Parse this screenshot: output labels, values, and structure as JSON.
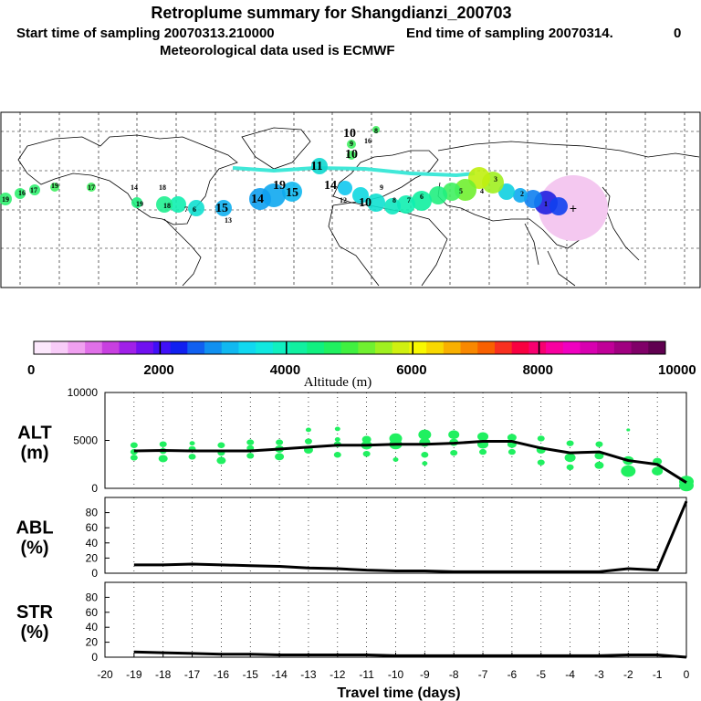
{
  "header": {
    "title": "Retroplume summary for Shangdianzi_200703",
    "line2_start": "Start time of sampling 20070313.210000",
    "line2_end": "End time of sampling 20070314.",
    "line2_tail": "0",
    "line3": "Meteorological data used is ECMWF"
  },
  "colorbar": {
    "label": "Altitude (m)",
    "ticks": [
      "0",
      "2000",
      "4000",
      "6000",
      "8000",
      "10000"
    ],
    "colors": [
      "#fce8fc",
      "#f8ccf8",
      "#f0a0f0",
      "#e070e8",
      "#c840e0",
      "#a020e8",
      "#7010f0",
      "#4010f8",
      "#1020f0",
      "#1060f0",
      "#1090f0",
      "#10b8f0",
      "#10d8f0",
      "#10e8e0",
      "#10f0c0",
      "#10f0a0",
      "#10f080",
      "#20f060",
      "#40f040",
      "#70f030",
      "#a0f020",
      "#d0f010",
      "#f8f800",
      "#f8d800",
      "#f8b000",
      "#f88800",
      "#f86000",
      "#f83020",
      "#f80040",
      "#f80070",
      "#f800a0",
      "#f000c0",
      "#d800b0",
      "#c00098",
      "#a00080",
      "#800068",
      "#600050"
    ]
  },
  "map": {
    "labels": [
      "19",
      "16",
      "17",
      "19",
      "17",
      "14",
      "18",
      "19",
      "18",
      "7",
      "6",
      "15",
      "13",
      "14",
      "19",
      "15",
      "11",
      "10",
      "9",
      "8",
      "10",
      "16",
      "14",
      "12",
      "10",
      "9",
      "8",
      "7",
      "6",
      "5",
      "4",
      "3",
      "2",
      "1"
    ],
    "source_marker": "+"
  },
  "chart_data": [
    {
      "type": "line",
      "name": "ALT",
      "title": "ALT",
      "ylabel": "(m)",
      "ylim": [
        0,
        10000
      ],
      "yticks": [
        "0",
        "5000",
        "10000"
      ],
      "x": [
        -19,
        -18,
        -17,
        -16,
        -15,
        -14,
        -13,
        -12,
        -11,
        -10,
        -9,
        -8,
        -7,
        -6,
        -5,
        -4,
        -3,
        -2,
        -1,
        0
      ],
      "values": [
        3900,
        3950,
        3900,
        3900,
        3900,
        4100,
        4300,
        4500,
        4500,
        4600,
        4600,
        4700,
        4900,
        4900,
        4200,
        3700,
        3800,
        2900,
        2500,
        600
      ],
      "scatter_points": [
        {
          "x": -19,
          "y": 3200,
          "s": 4
        },
        {
          "x": -19,
          "y": 3800,
          "s": 4
        },
        {
          "x": -19,
          "y": 4500,
          "s": 4
        },
        {
          "x": -18,
          "y": 3100,
          "s": 5
        },
        {
          "x": -18,
          "y": 3900,
          "s": 4
        },
        {
          "x": -18,
          "y": 4600,
          "s": 4
        },
        {
          "x": -17,
          "y": 3300,
          "s": 4
        },
        {
          "x": -17,
          "y": 4100,
          "s": 4
        },
        {
          "x": -17,
          "y": 4700,
          "s": 3
        },
        {
          "x": -16,
          "y": 2900,
          "s": 5
        },
        {
          "x": -16,
          "y": 3700,
          "s": 4
        },
        {
          "x": -16,
          "y": 4500,
          "s": 4
        },
        {
          "x": -15,
          "y": 3400,
          "s": 4
        },
        {
          "x": -15,
          "y": 4200,
          "s": 4
        },
        {
          "x": -15,
          "y": 4800,
          "s": 4
        },
        {
          "x": -14,
          "y": 3300,
          "s": 5
        },
        {
          "x": -14,
          "y": 4100,
          "s": 5
        },
        {
          "x": -14,
          "y": 4800,
          "s": 4
        },
        {
          "x": -13,
          "y": 4000,
          "s": 5
        },
        {
          "x": -13,
          "y": 4900,
          "s": 4
        },
        {
          "x": -13,
          "y": 6100,
          "s": 3
        },
        {
          "x": -12,
          "y": 3500,
          "s": 4
        },
        {
          "x": -12,
          "y": 4600,
          "s": 4
        },
        {
          "x": -12,
          "y": 5100,
          "s": 3
        },
        {
          "x": -12,
          "y": 6200,
          "s": 3
        },
        {
          "x": -11,
          "y": 3600,
          "s": 4
        },
        {
          "x": -11,
          "y": 4500,
          "s": 6
        },
        {
          "x": -11,
          "y": 5100,
          "s": 5
        },
        {
          "x": -10,
          "y": 3000,
          "s": 3
        },
        {
          "x": -10,
          "y": 4600,
          "s": 7
        },
        {
          "x": -10,
          "y": 5200,
          "s": 7
        },
        {
          "x": -9,
          "y": 3500,
          "s": 4
        },
        {
          "x": -9,
          "y": 4800,
          "s": 6
        },
        {
          "x": -9,
          "y": 5600,
          "s": 7
        },
        {
          "x": -9,
          "y": 2600,
          "s": 3
        },
        {
          "x": -8,
          "y": 3700,
          "s": 4
        },
        {
          "x": -8,
          "y": 4800,
          "s": 5
        },
        {
          "x": -8,
          "y": 5600,
          "s": 6
        },
        {
          "x": -7,
          "y": 3800,
          "s": 4
        },
        {
          "x": -7,
          "y": 4600,
          "s": 6
        },
        {
          "x": -7,
          "y": 5400,
          "s": 6
        },
        {
          "x": -6,
          "y": 3800,
          "s": 4
        },
        {
          "x": -6,
          "y": 4600,
          "s": 5
        },
        {
          "x": -6,
          "y": 5300,
          "s": 5
        },
        {
          "x": -5,
          "y": 2700,
          "s": 4
        },
        {
          "x": -5,
          "y": 4000,
          "s": 5
        },
        {
          "x": -5,
          "y": 5200,
          "s": 4
        },
        {
          "x": -4,
          "y": 2200,
          "s": 4
        },
        {
          "x": -4,
          "y": 3200,
          "s": 6
        },
        {
          "x": -4,
          "y": 4700,
          "s": 4
        },
        {
          "x": -3,
          "y": 2400,
          "s": 5
        },
        {
          "x": -3,
          "y": 3400,
          "s": 5
        },
        {
          "x": -3,
          "y": 4600,
          "s": 4
        },
        {
          "x": -2,
          "y": 1800,
          "s": 8
        },
        {
          "x": -2,
          "y": 2900,
          "s": 6
        },
        {
          "x": -2,
          "y": 6100,
          "s": 2
        },
        {
          "x": -1,
          "y": 1800,
          "s": 6
        },
        {
          "x": -1,
          "y": 2800,
          "s": 5
        },
        {
          "x": 0,
          "y": 300,
          "s": 8
        },
        {
          "x": 0,
          "y": 700,
          "s": 8
        }
      ]
    },
    {
      "type": "line",
      "name": "ABL",
      "title": "ABL",
      "ylabel": "(%)",
      "ylim": [
        0,
        100
      ],
      "yticks": [
        "0",
        "20",
        "40",
        "60",
        "80"
      ],
      "x": [
        -19,
        -18,
        -17,
        -16,
        -15,
        -14,
        -13,
        -12,
        -11,
        -10,
        -9,
        -8,
        -7,
        -6,
        -5,
        -4,
        -3,
        -2,
        -1,
        0
      ],
      "values": [
        11,
        11,
        12,
        11,
        10,
        9,
        7,
        6,
        4,
        3,
        3,
        2,
        2,
        2,
        2,
        2,
        2,
        6,
        4,
        95
      ]
    },
    {
      "type": "line",
      "name": "STR",
      "title": "STR",
      "ylabel": "(%)",
      "ylim": [
        0,
        100
      ],
      "yticks": [
        "0",
        "20",
        "40",
        "60",
        "80"
      ],
      "x": [
        -19,
        -18,
        -17,
        -16,
        -15,
        -14,
        -13,
        -12,
        -11,
        -10,
        -9,
        -8,
        -7,
        -6,
        -5,
        -4,
        -3,
        -2,
        -1,
        0
      ],
      "values": [
        7,
        6,
        5,
        4,
        4,
        3,
        3,
        3,
        3,
        2,
        2,
        2,
        2,
        2,
        2,
        2,
        2,
        3,
        3,
        0
      ],
      "xlabel": "Travel time (days)",
      "xticks": [
        "-20",
        "-19",
        "-18",
        "-17",
        "-16",
        "-15",
        "-14",
        "-13",
        "-12",
        "-11",
        "-10",
        "-9",
        "-8",
        "-7",
        "-6",
        "-5",
        "-4",
        "-3",
        "-2",
        "-1",
        "0"
      ]
    }
  ]
}
